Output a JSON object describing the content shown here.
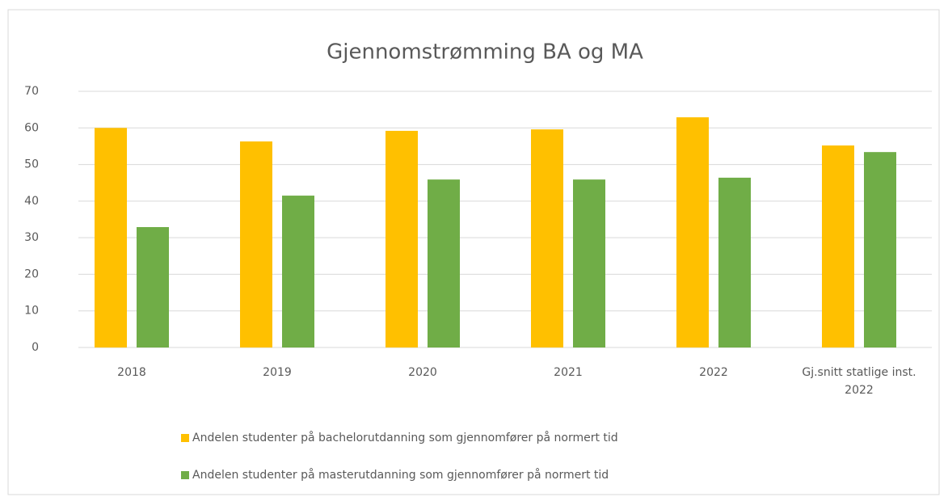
{
  "chart_data": {
    "type": "bar",
    "title": "Gjennomstrømming BA og MA",
    "categories": [
      "2018",
      "2019",
      "2020",
      "2021",
      "2022",
      "Gj.snitt statlige inst. 2022"
    ],
    "series": [
      {
        "name": "Andelen studenter på bachelorutdanning som gjennomfører på normert tid",
        "color": "#FFC000",
        "values": [
          60.0,
          56.3,
          59.2,
          59.6,
          62.9,
          55.2
        ]
      },
      {
        "name": "Andelen studenter på masterutdanning som gjennomfører på normert tid",
        "color": "#70AD47",
        "values": [
          32.9,
          41.5,
          45.9,
          45.9,
          46.4,
          53.4
        ]
      }
    ],
    "ylim": [
      0,
      70
    ],
    "yticks": [
      0,
      10,
      20,
      30,
      40,
      50,
      60,
      70
    ],
    "grid": true,
    "legend": "bottom"
  }
}
